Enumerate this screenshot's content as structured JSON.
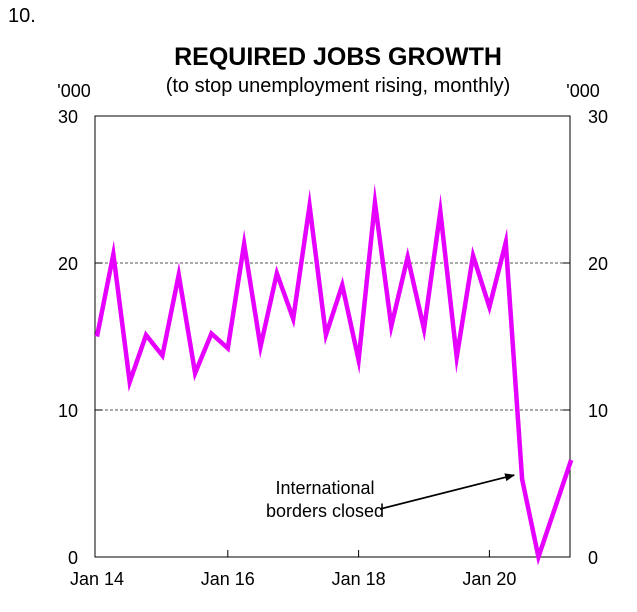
{
  "figure_number": "10.",
  "chart_data": {
    "type": "line",
    "title": "REQUIRED JOBS GROWTH",
    "subtitle": "(to stop unemployment rising, monthly)",
    "unit_left": "'000",
    "unit_right": "'000",
    "ylim": [
      0,
      30
    ],
    "yticks": [
      0,
      10,
      20,
      30
    ],
    "y_tick_labels": [
      "0",
      "10",
      "20",
      "30"
    ],
    "grid": "horizontal dashed",
    "x_tick_labels": [
      "Jan 14",
      "Jan 16",
      "Jan 18",
      "Jan 20"
    ],
    "x_tick_indices": [
      0,
      8,
      16,
      24
    ],
    "series": [
      {
        "name": "Required jobs growth",
        "color": "#e600ff",
        "values": [
          15.0,
          20.6,
          11.9,
          15.1,
          13.7,
          19.2,
          12.5,
          15.2,
          14.2,
          21.3,
          14.3,
          19.3,
          16.2,
          23.9,
          15.1,
          18.5,
          13.4,
          24.1,
          15.7,
          20.4,
          15.5,
          23.5,
          13.6,
          20.5,
          17.0,
          21.4,
          5.3,
          0.0,
          3.3,
          6.6
        ]
      }
    ],
    "annotation": {
      "lines": [
        "International",
        "borders closed"
      ],
      "target_index": 26,
      "target_value": 5.3
    }
  }
}
